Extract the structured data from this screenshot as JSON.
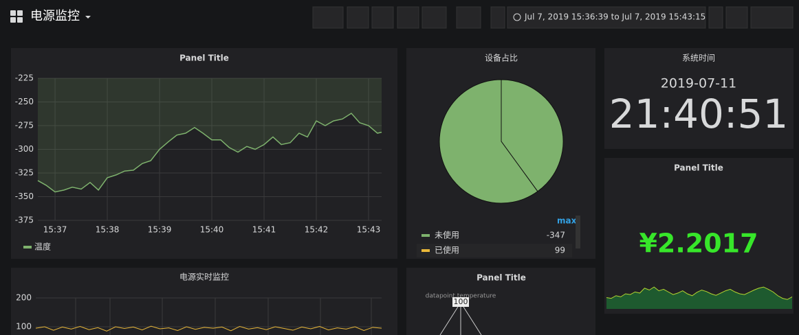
{
  "header": {
    "title": "电源监控",
    "time_range": "Jul 7, 2019 15:36:39 to Jul 7, 2019 15:43:15"
  },
  "panels": [
    {
      "title": "Panel Title",
      "type": "line",
      "legend": "温度",
      "color": "#7eb26d",
      "ylim": [
        -375,
        -225
      ],
      "yticks": [
        -225,
        -250,
        -275,
        -300,
        -325,
        -350,
        -375
      ],
      "xlim": [
        36.67,
        43.25
      ],
      "xticks": [
        {
          "value": 37,
          "label": "15:37"
        },
        {
          "value": 38,
          "label": "15:38"
        },
        {
          "value": 39,
          "label": "15:39"
        },
        {
          "value": 40,
          "label": "15:40"
        },
        {
          "value": 41,
          "label": "15:41"
        },
        {
          "value": 42,
          "label": "15:42"
        },
        {
          "value": 43,
          "label": "15:43"
        }
      ],
      "x": [
        36.67,
        36.83,
        37,
        37.17,
        37.33,
        37.5,
        37.67,
        37.83,
        38,
        38.17,
        38.33,
        38.5,
        38.67,
        38.83,
        39,
        39.17,
        39.33,
        39.5,
        39.67,
        39.83,
        40,
        40.17,
        40.33,
        40.5,
        40.67,
        40.83,
        41,
        41.17,
        41.33,
        41.5,
        41.67,
        41.83,
        42,
        42.17,
        42.33,
        42.5,
        42.67,
        42.83,
        43,
        43.17,
        43.25
      ],
      "values": [
        -333,
        -338,
        -345,
        -343,
        -340,
        -342,
        -335,
        -343,
        -330,
        -327,
        -323,
        -322,
        -315,
        -312,
        -300,
        -292,
        -285,
        -283,
        -277,
        -283,
        -290,
        -290,
        -298,
        -303,
        -297,
        -300,
        -295,
        -287,
        -295,
        -293,
        -283,
        -287,
        -270,
        -275,
        -270,
        -268,
        -262,
        -272,
        -275,
        -283,
        -282
      ]
    },
    {
      "title": "设备占比",
      "type": "pie",
      "pie_color": "#7eb26d",
      "legend_header": "max",
      "rows": [
        {
          "name": "未使用",
          "color": "#7eb26d",
          "max": -347,
          "share": 40
        },
        {
          "name": "已使用",
          "color": "#eab839",
          "max": 99,
          "share": 60
        }
      ]
    },
    {
      "title": "系统时间",
      "type": "clock",
      "date": "2019-07-11",
      "time": "21:40:51"
    },
    {
      "title": "Panel Title",
      "type": "stat",
      "value": "¥2.2017",
      "color": "#37e62a",
      "spark_ylim": [
        0,
        100
      ],
      "sparkline": [
        30,
        28,
        35,
        32,
        40,
        38,
        45,
        42,
        55,
        50,
        58,
        48,
        52,
        45,
        38,
        42,
        48,
        40,
        35,
        44,
        50,
        46,
        40,
        36,
        42,
        48,
        52,
        45,
        40,
        38,
        44,
        50,
        55,
        58,
        52,
        45,
        35,
        28,
        25,
        32
      ]
    },
    {
      "title": "电源实时监控",
      "type": "line",
      "color": "#eab839",
      "ylim": [
        100,
        200
      ],
      "yticks": [
        200,
        100
      ],
      "values": [
        95,
        100,
        88,
        99,
        92,
        101,
        90,
        97,
        85,
        100,
        94,
        99,
        89,
        102,
        93,
        96,
        87,
        100,
        91,
        98,
        95,
        99,
        86,
        101,
        92,
        97,
        90,
        100,
        94,
        88,
        99,
        93,
        101,
        89,
        96,
        92,
        100,
        87,
        98,
        95
      ]
    },
    {
      "title": "Panel Title",
      "type": "diagram",
      "label": "datapoint.temperature",
      "node": "100"
    }
  ]
}
